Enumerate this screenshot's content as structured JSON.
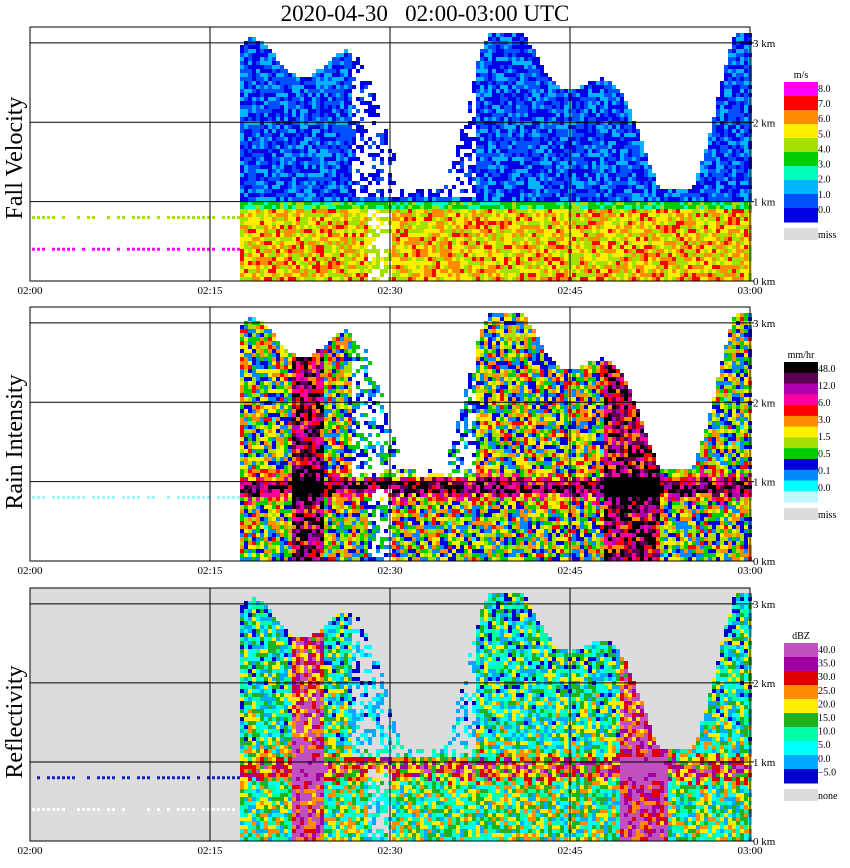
{
  "title": "2020-04-30   02:00-03:00 UTC",
  "chart_data": [
    {
      "type": "heatmap",
      "panel": "Fall Velocity",
      "x_ticks": [
        "02:00",
        "02:15",
        "02:30",
        "02:45",
        "03:00"
      ],
      "x_range_minutes": [
        0,
        60
      ],
      "y_ticks": [
        "0 km",
        "1 km",
        "2 km",
        "3 km"
      ],
      "y_range_km": [
        0,
        3.2
      ],
      "colorbar_unit": "m/s",
      "colorbar_labels": [
        "8.0",
        "7.0",
        "6.0",
        "5.0",
        "4.0",
        "3.0",
        "2.0",
        "1.0",
        "0.0",
        "miss"
      ],
      "colorbar_colors": [
        "#ff00ff",
        "#ff0000",
        "#ff8c00",
        "#ffee00",
        "#a4e000",
        "#00cc00",
        "#00ffbb",
        "#00b4ff",
        "#0050ff",
        "#0000e6"
      ],
      "missing_color": "#dcdcdc",
      "precip_start_min": 17.5,
      "features": {
        "melting_layer_km": 0.95,
        "clutter_lines_km": [
          0.8,
          0.4
        ],
        "clutter_line_colors": [
          "#a4e000",
          "#ff00ff"
        ]
      },
      "grid": true
    },
    {
      "type": "heatmap",
      "panel": "Rain Intensity",
      "x_ticks": [
        "02:00",
        "02:15",
        "02:30",
        "02:45",
        "03:00"
      ],
      "x_range_minutes": [
        0,
        60
      ],
      "y_ticks": [
        "0 km",
        "1 km",
        "2 km",
        "3 km"
      ],
      "y_range_km": [
        0,
        3.2
      ],
      "colorbar_unit": "mm/hr",
      "colorbar_labels": [
        "48.0",
        "12.0",
        "6.0",
        "3.0",
        "1.5",
        "0.5",
        "0.1",
        "0.0",
        "miss"
      ],
      "colorbar_colors": [
        "#000000",
        "#5a0050",
        "#b000b0",
        "#ff00a0",
        "#ff0000",
        "#ff8c00",
        "#ffee00",
        "#a4e000",
        "#00cc00",
        "#0000dd",
        "#0088ff",
        "#00ffff",
        "#bff6ff"
      ],
      "missing_color": "#dcdcdc",
      "precip_start_min": 17.5,
      "features": {
        "melting_layer_km": 0.95,
        "clutter_lines_km": [
          0.8
        ],
        "clutter_line_colors": [
          "#9ef6ff"
        ]
      },
      "grid": true
    },
    {
      "type": "heatmap",
      "panel": "Reflectivity",
      "x_ticks": [
        "02:00",
        "02:15",
        "02:30",
        "02:45",
        "03:00"
      ],
      "x_range_minutes": [
        0,
        60
      ],
      "y_ticks": [
        "0 km",
        "1 km",
        "2 km",
        "3 km"
      ],
      "y_range_km": [
        0,
        3.2
      ],
      "colorbar_unit": "dBZ",
      "colorbar_labels": [
        "40.0",
        "35.0",
        "30.0",
        "25.0",
        "20.0",
        "15.0",
        "10.0",
        "5.0",
        "0.0",
        "−5.0",
        "none"
      ],
      "colorbar_colors": [
        "#c050c0",
        "#a000a0",
        "#e00000",
        "#ff8c00",
        "#ffee00",
        "#20b020",
        "#00ffaa",
        "#00ffff",
        "#00aaff",
        "#0000cc"
      ],
      "missing_color": "#dcdcdc",
      "background_color": "#dcdcdc",
      "precip_start_min": 17.5,
      "features": {
        "melting_layer_km": 0.95,
        "clutter_lines_km": [
          0.8,
          0.4
        ],
        "clutter_line_colors": [
          "#1020c0",
          "#ffffff"
        ]
      },
      "grid": true
    }
  ]
}
